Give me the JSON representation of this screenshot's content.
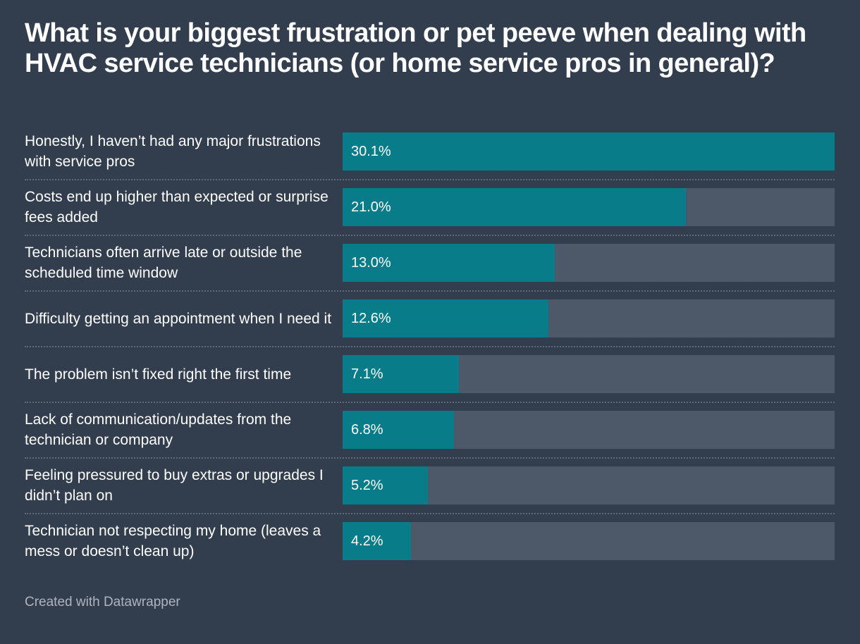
{
  "chart_data": {
    "type": "bar",
    "orientation": "horizontal",
    "title": "What is your biggest frustration or pet peeve when dealing with HVAC service technicians (or home service pros in general)?",
    "categories": [
      "Honestly, I haven’t had any major frustrations with service pros",
      "Costs end up higher than expected or surprise fees added",
      "Technicians often arrive late or outside the scheduled time window",
      "Difficulty getting an appointment when I need it",
      "The problem isn’t fixed right the first time",
      "Lack of communication/updates from the technician or company",
      "Feeling pressured to buy extras or upgrades I didn’t plan on",
      "Technician not respecting my home (leaves a mess or doesn’t clean up)"
    ],
    "values": [
      30.1,
      21.0,
      13.0,
      12.6,
      7.1,
      6.8,
      5.2,
      4.2
    ],
    "value_labels": [
      "30.1%",
      "21.0%",
      "13.0%",
      "12.6%",
      "7.1%",
      "6.8%",
      "5.2%",
      "4.2%"
    ],
    "xlim": [
      0,
      30.1
    ],
    "xlabel": "",
    "ylabel": "",
    "grid": false,
    "colors": {
      "bar": "#087d89",
      "track": "#4d5868",
      "background": "#323d4e"
    }
  },
  "footer": {
    "credit": "Created with Datawrapper"
  }
}
